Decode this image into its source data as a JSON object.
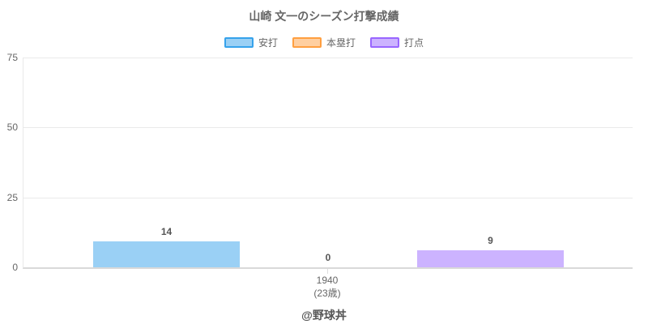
{
  "title": "山崎 文一のシーズン打撃成績",
  "footer": "@野球丼",
  "chart_data": {
    "type": "bar",
    "title": "山崎 文一のシーズン打撃成績",
    "categories": [
      "1940 (23歳)"
    ],
    "x_tick_lines": [
      "1940",
      "(23歳)"
    ],
    "series": [
      {
        "name": "安打",
        "values": [
          14
        ],
        "fill_color": "#9AD0F5",
        "border_color": "#36A2EB"
      },
      {
        "name": "本塁打",
        "values": [
          0
        ],
        "fill_color": "#FFCFA0",
        "border_color": "#FF9F40"
      },
      {
        "name": "打点",
        "values": [
          9
        ],
        "fill_color": "#CCB3FF",
        "border_color": "#9966FF"
      }
    ],
    "ylim": [
      0,
      75
    ],
    "yticks": [
      "75",
      "50",
      "25",
      "0"
    ],
    "legend_position": "top",
    "grid": true,
    "data_labels_shown": true,
    "attribution": "@野球丼"
  },
  "colors": {
    "label_text": "#666666",
    "data_label_text": "#555555",
    "gridline": "#EAEAEA",
    "axis_line": "#D9D9D9"
  }
}
